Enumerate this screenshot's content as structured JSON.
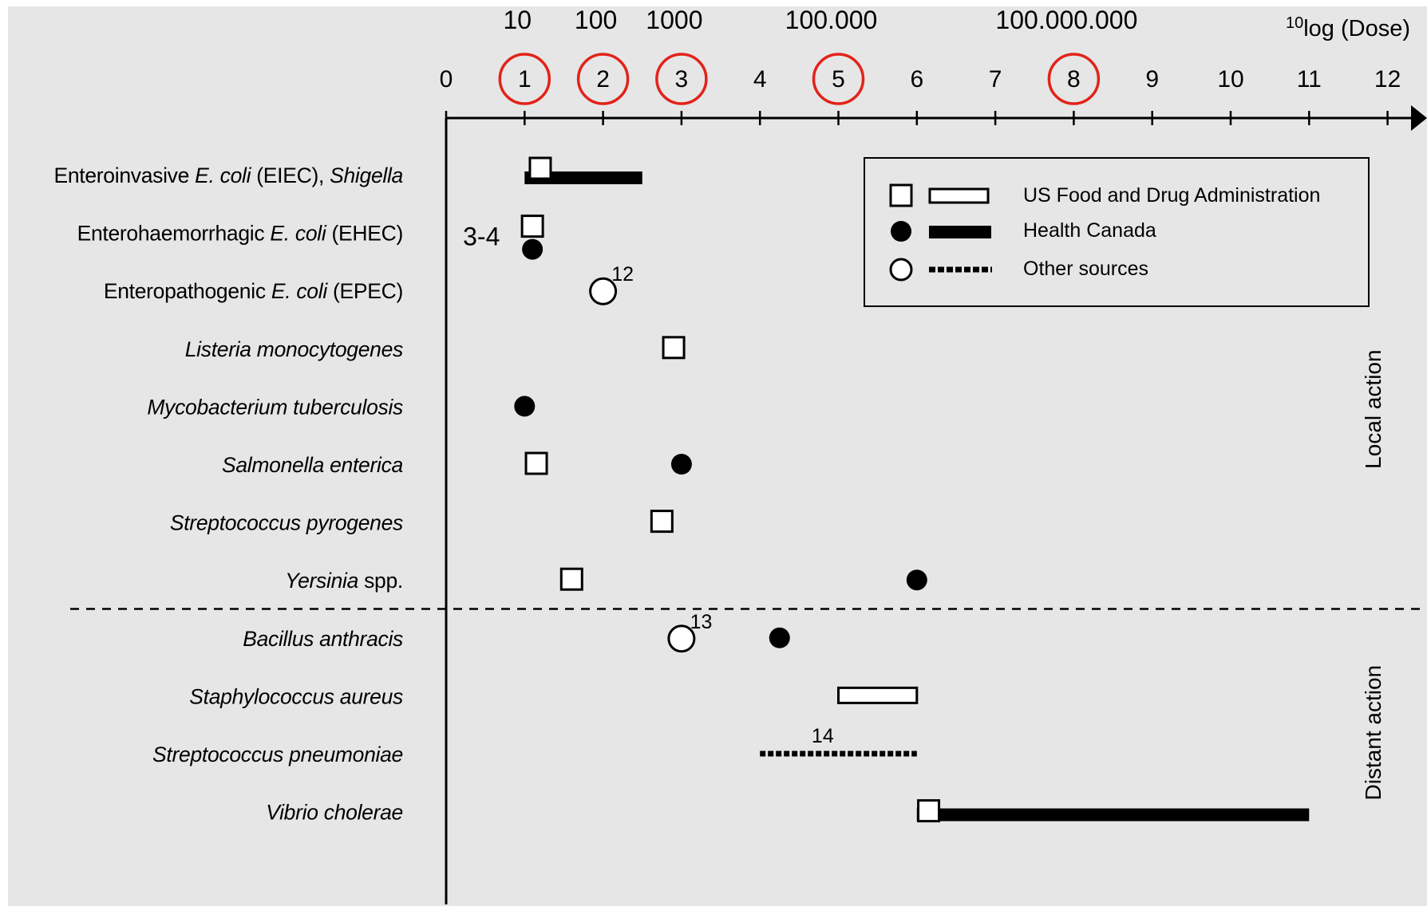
{
  "chart_data": {
    "type": "scatter",
    "x_axis": {
      "title_sup": "10",
      "title": "log (Dose)",
      "min": 0,
      "max": 12,
      "ticks": [
        "0",
        "1",
        "2",
        "3",
        "4",
        "5",
        "6",
        "7",
        "8",
        "9",
        "10",
        "11",
        "12"
      ],
      "circled_ticks": [
        1,
        2,
        3,
        5,
        8
      ],
      "dose_labels": [
        {
          "x": 1,
          "label": "10"
        },
        {
          "x": 2,
          "label": "100"
        },
        {
          "x": 3,
          "label": "1000"
        },
        {
          "x": 5,
          "label": "100.000"
        },
        {
          "x": 8,
          "label": "100.000.000"
        }
      ]
    },
    "rows": [
      {
        "label": [
          {
            "t": "Enteroinvasive ",
            "i": false
          },
          {
            "t": "E. coli",
            "i": true
          },
          {
            "t": " (EIEC), ",
            "i": false
          },
          {
            "t": "Shigella",
            "i": true
          }
        ]
      },
      {
        "label": [
          {
            "t": "Enterohaemorrhagic ",
            "i": false
          },
          {
            "t": "E. coli",
            "i": true
          },
          {
            "t": " (EHEC)",
            "i": false
          }
        ]
      },
      {
        "label": [
          {
            "t": "Enteropathogenic ",
            "i": false
          },
          {
            "t": "E. coli",
            "i": true
          },
          {
            "t": " (EPEC)",
            "i": false
          }
        ]
      },
      {
        "label": [
          {
            "t": "Listeria monocytogenes",
            "i": true
          }
        ]
      },
      {
        "label": [
          {
            "t": "Mycobacterium tuberculosis",
            "i": true
          }
        ]
      },
      {
        "label": [
          {
            "t": "Salmonella enterica",
            "i": true
          }
        ]
      },
      {
        "label": [
          {
            "t": "Streptococcus pyrogenes",
            "i": true
          }
        ]
      },
      {
        "label": [
          {
            "t": "Yersinia",
            "i": true
          },
          {
            "t": " spp.",
            "i": false
          }
        ]
      },
      {
        "label": [
          {
            "t": "Bacillus anthracis",
            "i": true
          }
        ]
      },
      {
        "label": [
          {
            "t": "Staphylococcus aureus",
            "i": true
          }
        ]
      },
      {
        "label": [
          {
            "t": "Streptococcus pneumoniae",
            "i": true
          }
        ]
      },
      {
        "label": [
          {
            "t": "Vibrio cholerae",
            "i": true
          }
        ]
      }
    ],
    "marks": [
      {
        "row": 0,
        "source": "fda",
        "kind": "point",
        "x": 1.2
      },
      {
        "row": 0,
        "source": "health_canada",
        "kind": "range",
        "x": [
          1.0,
          2.5
        ]
      },
      {
        "row": 1,
        "source": "fda",
        "kind": "point",
        "x": 1.1
      },
      {
        "row": 1,
        "source": "health_canada",
        "kind": "point",
        "x": 1.1
      },
      {
        "row": 2,
        "source": "other",
        "kind": "point",
        "x": 2.0
      },
      {
        "row": 3,
        "source": "fda",
        "kind": "point",
        "x": 2.9
      },
      {
        "row": 4,
        "source": "health_canada",
        "kind": "point",
        "x": 1.0
      },
      {
        "row": 5,
        "source": "fda",
        "kind": "point",
        "x": 1.15
      },
      {
        "row": 5,
        "source": "health_canada",
        "kind": "point",
        "x": 3.0
      },
      {
        "row": 6,
        "source": "fda",
        "kind": "point",
        "x": 2.75
      },
      {
        "row": 7,
        "source": "fda",
        "kind": "point",
        "x": 1.6
      },
      {
        "row": 7,
        "source": "health_canada",
        "kind": "point",
        "x": 6.0
      },
      {
        "row": 8,
        "source": "other",
        "kind": "point",
        "x": 3.0
      },
      {
        "row": 8,
        "source": "health_canada",
        "kind": "point",
        "x": 4.25
      },
      {
        "row": 9,
        "source": "fda",
        "kind": "range",
        "x": [
          5.0,
          6.0
        ]
      },
      {
        "row": 10,
        "source": "other",
        "kind": "range",
        "x": [
          4.0,
          6.0
        ]
      },
      {
        "row": 11,
        "source": "health_canada",
        "kind": "range",
        "x": [
          6.0,
          11.0
        ]
      },
      {
        "row": 11,
        "source": "fda",
        "kind": "point",
        "x": 6.15
      }
    ],
    "annotations": [
      {
        "row": 1,
        "text": "3-4",
        "anchor_x": 0.45,
        "size": "large"
      },
      {
        "row": 2,
        "text": "12",
        "anchor_x": 2.25,
        "size": "small"
      },
      {
        "row": 8,
        "text": "13",
        "anchor_x": 3.25,
        "size": "small"
      },
      {
        "row": 10,
        "text": "14",
        "anchor_x": 4.8,
        "size": "small"
      }
    ],
    "separator_after_row": 7,
    "groups": [
      {
        "label": "Local action",
        "rows": [
          0,
          7
        ]
      },
      {
        "label": "Distant action",
        "rows": [
          8,
          11
        ]
      }
    ],
    "legend": {
      "position": "top-right",
      "entries": [
        {
          "source": "fda",
          "label": "US Food and Drug Administration"
        },
        {
          "source": "health_canada",
          "label": "Health Canada"
        },
        {
          "source": "other",
          "label": "Other sources"
        }
      ]
    },
    "colors": {
      "background": "#e6e6e6",
      "ink": "#000000",
      "highlight": "#e2231a",
      "marker_fill": "#ffffff"
    }
  }
}
